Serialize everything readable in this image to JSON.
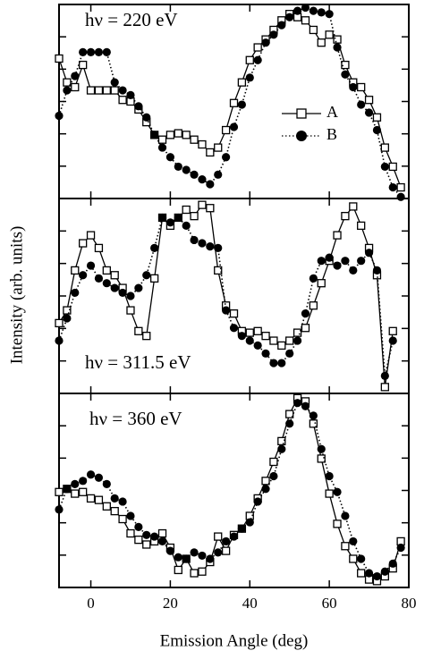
{
  "chart_data": [
    {
      "type": "line",
      "annotation": "hν = 220 eV",
      "x": [
        -8,
        -6,
        -4,
        -2,
        0,
        2,
        4,
        6,
        8,
        10,
        12,
        14,
        16,
        18,
        20,
        22,
        24,
        26,
        28,
        30,
        32,
        34,
        36,
        38,
        40,
        42,
        44,
        46,
        48,
        50,
        52,
        54,
        56,
        58,
        60,
        62,
        64,
        66,
        68,
        70,
        72,
        74,
        76,
        78
      ],
      "series": [
        {
          "name": "A",
          "color": "#000000",
          "marker": "square",
          "linestyle": "solid",
          "values": [
            4.4,
            3.65,
            3.5,
            4.2,
            3.4,
            3.4,
            3.4,
            3.4,
            3.1,
            3.05,
            2.8,
            2.4,
            2.0,
            1.85,
            2.0,
            2.05,
            2.0,
            1.85,
            1.7,
            1.45,
            1.6,
            2.15,
            3.0,
            3.65,
            4.35,
            4.75,
            5.0,
            5.3,
            5.6,
            5.8,
            5.7,
            5.6,
            5.3,
            4.9,
            5.15,
            5.0,
            4.2,
            3.65,
            3.5,
            3.1,
            2.55,
            1.6,
            1.0,
            0.35
          ]
        },
        {
          "name": "B",
          "color": "#000000",
          "marker": "circle",
          "linestyle": "dotted",
          "values": [
            2.6,
            3.4,
            3.85,
            4.6,
            4.6,
            4.6,
            4.6,
            3.65,
            3.4,
            3.25,
            2.9,
            2.55,
            2.0,
            1.6,
            1.3,
            1.0,
            0.9,
            0.75,
            0.6,
            0.45,
            0.75,
            1.3,
            2.25,
            2.95,
            3.8,
            4.35,
            4.9,
            5.15,
            5.45,
            5.7,
            5.9,
            6.0,
            5.9,
            5.85,
            5.8,
            4.75,
            3.9,
            3.5,
            2.95,
            2.7,
            2.15,
            1.0,
            0.35,
            0.05
          ]
        }
      ],
      "xlim": [
        -8,
        80
      ],
      "ylim": [
        0,
        6.1
      ]
    },
    {
      "type": "line",
      "annotation": "hν = 311.5 eV",
      "ylabel": "Intensity (arb. units)",
      "x": [
        -8,
        -6,
        -4,
        -2,
        0,
        2,
        4,
        6,
        8,
        10,
        12,
        14,
        16,
        18,
        20,
        22,
        24,
        26,
        28,
        30,
        32,
        34,
        36,
        38,
        40,
        42,
        44,
        46,
        48,
        50,
        52,
        54,
        56,
        58,
        60,
        62,
        64,
        66,
        68,
        70,
        72,
        74,
        76,
        78
      ],
      "series": [
        {
          "color": "#000000",
          "marker": "square",
          "linestyle": "solid",
          "values": [
            2.2,
            2.6,
            3.85,
            4.7,
            4.95,
            4.55,
            3.85,
            3.7,
            3.3,
            2.6,
            1.95,
            1.8,
            3.6,
            5.5,
            5.25,
            5.5,
            5.75,
            5.55,
            5.9,
            5.8,
            3.85,
            2.75,
            2.5,
            1.95,
            1.9,
            1.95,
            1.8,
            1.65,
            1.5,
            1.65,
            1.9,
            2.05,
            2.75,
            3.45,
            4.15,
            4.95,
            5.55,
            5.85,
            5.25,
            4.55,
            3.7,
            0.2,
            1.95,
            null
          ]
        },
        {
          "color": "#000000",
          "marker": "circle",
          "linestyle": "dotted",
          "values": [
            1.65,
            2.35,
            3.15,
            3.7,
            4.0,
            3.6,
            3.45,
            3.3,
            3.15,
            3.05,
            3.3,
            3.7,
            4.55,
            5.5,
            5.35,
            5.5,
            5.25,
            4.8,
            4.7,
            4.6,
            4.55,
            2.6,
            2.05,
            1.8,
            1.65,
            1.5,
            1.25,
            0.95,
            0.95,
            1.25,
            1.65,
            2.5,
            3.6,
            4.15,
            4.25,
            4.0,
            4.15,
            3.85,
            4.15,
            4.4,
            3.85,
            0.55,
            1.65,
            null
          ]
        }
      ],
      "xlim": [
        -8,
        80
      ],
      "ylim": [
        0,
        6.1
      ]
    },
    {
      "type": "line",
      "annotation": "hν = 360 eV",
      "xlabel": "Emission Angle (deg)",
      "x": [
        -8,
        -6,
        -4,
        -2,
        0,
        2,
        4,
        6,
        8,
        10,
        12,
        14,
        16,
        18,
        20,
        22,
        24,
        26,
        28,
        30,
        32,
        34,
        36,
        38,
        40,
        42,
        44,
        46,
        48,
        50,
        52,
        54,
        56,
        58,
        60,
        62,
        64,
        66,
        68,
        70,
        72,
        74,
        76,
        78
      ],
      "series": [
        {
          "color": "#000000",
          "marker": "square",
          "linestyle": "solid",
          "values": [
            3.0,
            3.1,
            2.95,
            3.0,
            2.8,
            2.75,
            2.55,
            2.4,
            2.15,
            1.7,
            1.5,
            1.35,
            1.45,
            1.7,
            1.25,
            0.55,
            0.9,
            0.45,
            0.5,
            0.8,
            1.6,
            1.15,
            1.65,
            1.85,
            2.25,
            2.8,
            3.35,
            3.95,
            4.6,
            5.45,
            5.95,
            5.85,
            5.15,
            4.05,
            2.95,
            2.0,
            1.3,
            0.9,
            0.45,
            0.25,
            0.2,
            0.35,
            0.6,
            1.45
          ]
        },
        {
          "color": "#000000",
          "marker": "circle",
          "linestyle": "dotted",
          "values": [
            2.45,
            3.1,
            3.25,
            3.35,
            3.55,
            3.45,
            3.25,
            2.8,
            2.7,
            2.25,
            1.9,
            1.65,
            1.6,
            1.45,
            1.15,
            0.95,
            0.9,
            1.1,
            1.0,
            0.9,
            1.1,
            1.45,
            1.6,
            1.85,
            2.05,
            2.7,
            3.1,
            3.5,
            4.35,
            5.15,
            5.8,
            5.7,
            5.4,
            4.35,
            3.5,
            3.0,
            2.25,
            1.45,
            0.9,
            0.45,
            0.35,
            0.5,
            0.75,
            1.25
          ]
        }
      ],
      "xlim": [
        -8,
        80
      ],
      "ylim": [
        0,
        6.1
      ],
      "xticks": [
        0,
        20,
        40,
        60,
        80
      ]
    }
  ]
}
